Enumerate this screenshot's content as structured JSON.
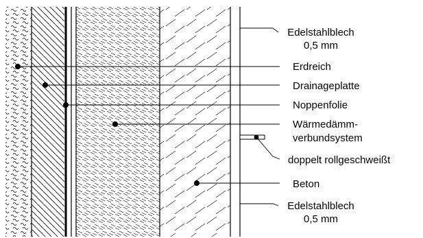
{
  "labels": {
    "edelstahl_top_line1": "Edelstahlblech",
    "edelstahl_top_line2": "0,5 mm",
    "erdreich": "Erdreich",
    "drainageplatte": "Drainageplatte",
    "noppenfolie": "Noppenfolie",
    "waermedaemm_line1": "Wärmedämm-",
    "waermedaemm_line2": "verbundsystem",
    "rollgeschweisst": "doppelt rollgeschweißt",
    "beton": "Beton",
    "edelstahl_bottom_line1": "Edelstahlblech",
    "edelstahl_bottom_line2": "0,5 mm"
  },
  "colors": {
    "ink": "#000000",
    "background": "#ffffff"
  }
}
